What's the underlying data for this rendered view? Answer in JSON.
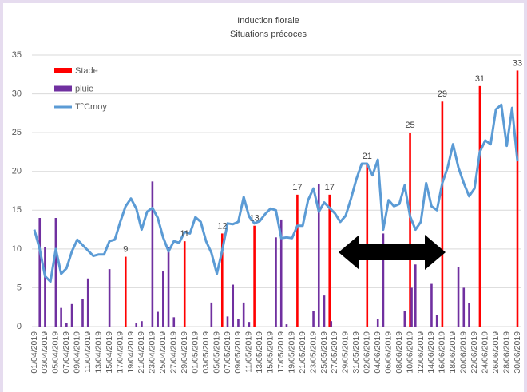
{
  "chart_data": {
    "type": "bar-line",
    "title": "Induction florale",
    "subtitle": "Situations précoces",
    "categories": [
      "01/04/2019",
      null,
      "03/04/2019",
      null,
      "05/04/2019",
      null,
      "07/04/2019",
      null,
      "09/04/2019",
      null,
      "11/04/2019",
      null,
      "13/04/2019",
      null,
      "15/04/2019",
      null,
      "17/04/2019",
      null,
      "19/04/2019",
      null,
      "21/04/2019",
      null,
      "23/04/2019",
      null,
      "25/04/2019",
      null,
      "27/04/2019",
      null,
      "29/04/2019",
      null,
      "01/05/2019",
      null,
      "03/05/2019",
      null,
      "05/05/2019",
      null,
      "07/05/2019",
      null,
      "09/05/2019",
      null,
      "11/05/2019",
      null,
      "13/05/2019",
      null,
      "15/05/2019",
      null,
      "17/05/2019",
      null,
      "19/05/2019",
      null,
      "21/05/2019",
      null,
      "23/05/2019",
      null,
      "25/05/2019",
      null,
      "27/05/2019",
      null,
      "29/05/2019",
      null,
      "31/05/2019",
      null,
      "02/06/2019",
      null,
      "04/06/2019",
      null,
      "06/06/2019",
      null,
      "08/06/2019",
      null,
      "10/06/2019",
      null,
      "12/06/2019",
      null,
      "14/06/2019",
      null,
      "16/06/2019",
      null,
      "18/06/2019",
      null,
      "20/06/2019",
      null,
      "22/06/2019",
      null,
      "24/06/2019",
      null,
      "26/06/2019",
      null,
      "28/06/2019",
      null,
      "30/06/2019"
    ],
    "series": [
      {
        "name": "Stade",
        "kind": "bar",
        "color": "#ff0000",
        "data_labels": true,
        "values": [
          null,
          null,
          null,
          null,
          null,
          null,
          null,
          null,
          null,
          null,
          null,
          null,
          null,
          null,
          null,
          null,
          null,
          9,
          null,
          null,
          null,
          null,
          null,
          null,
          null,
          null,
          null,
          null,
          11,
          null,
          null,
          null,
          null,
          null,
          null,
          12,
          null,
          null,
          null,
          null,
          null,
          13,
          null,
          null,
          null,
          null,
          null,
          null,
          null,
          17,
          null,
          null,
          null,
          null,
          null,
          17,
          null,
          null,
          null,
          null,
          null,
          null,
          21,
          null,
          null,
          null,
          null,
          null,
          null,
          null,
          25,
          null,
          null,
          null,
          null,
          null,
          29,
          null,
          null,
          null,
          null,
          null,
          null,
          31,
          null,
          null,
          null,
          null,
          null,
          null,
          33
        ]
      },
      {
        "name": "pluie",
        "kind": "bar",
        "color": "#7030a0",
        "values": [
          null,
          14,
          10.2,
          null,
          14,
          2.4,
          0.5,
          2.9,
          null,
          3.5,
          6.2,
          null,
          null,
          null,
          7.4,
          null,
          null,
          null,
          null,
          0.5,
          0.7,
          null,
          18.7,
          1.9,
          7.1,
          10.2,
          1.2,
          null,
          null,
          null,
          null,
          null,
          null,
          3.1,
          null,
          null,
          1.3,
          5.4,
          1,
          3.1,
          0.6,
          null,
          null,
          null,
          null,
          11.5,
          13.8,
          0.3,
          null,
          null,
          null,
          null,
          2,
          18.4,
          4,
          0.7,
          null,
          null,
          null,
          null,
          null,
          null,
          null,
          null,
          1,
          12,
          null,
          null,
          null,
          2,
          5,
          8,
          null,
          null,
          5.5,
          1.5,
          null,
          null,
          null,
          7.7,
          5,
          3,
          null,
          null,
          null,
          null,
          null,
          null,
          null,
          null,
          null
        ]
      },
      {
        "name": "T°Cmoy",
        "kind": "line",
        "color": "#5b9bd5",
        "values": [
          12.5,
          10,
          6.5,
          5.8,
          10,
          6.8,
          7.5,
          9.7,
          11.2,
          10.5,
          9.8,
          9.1,
          9.3,
          9.3,
          11,
          11.2,
          13.5,
          15.5,
          16.5,
          15.2,
          12.5,
          14.8,
          15.3,
          14,
          11.5,
          9.7,
          11,
          10.8,
          12.2,
          12,
          14.1,
          13.5,
          11,
          9.5,
          6.8,
          9.8,
          13.3,
          13.2,
          13.5,
          16.7,
          14.2,
          13.3,
          13.6,
          14.5,
          15.2,
          15,
          11.4,
          11.5,
          11.4,
          13,
          13,
          16.3,
          17.8,
          14.8,
          16,
          15.3,
          14.6,
          13.5,
          14.3,
          16.5,
          19,
          21,
          21,
          19.5,
          21.5,
          12.5,
          16.3,
          15.5,
          15.8,
          18.2,
          14.2,
          12.5,
          13.5,
          18.5,
          15.5,
          15,
          18.5,
          20.5,
          23.5,
          20.5,
          18.5,
          16.8,
          17.8,
          22.5,
          24,
          23.5,
          28,
          28.6,
          23.3,
          28.2,
          21.3
        ]
      }
    ],
    "ylim": [
      0,
      35
    ],
    "yticks": [
      0,
      5,
      10,
      15,
      20,
      25,
      30,
      35
    ],
    "grid": true,
    "legend": "top-left"
  }
}
